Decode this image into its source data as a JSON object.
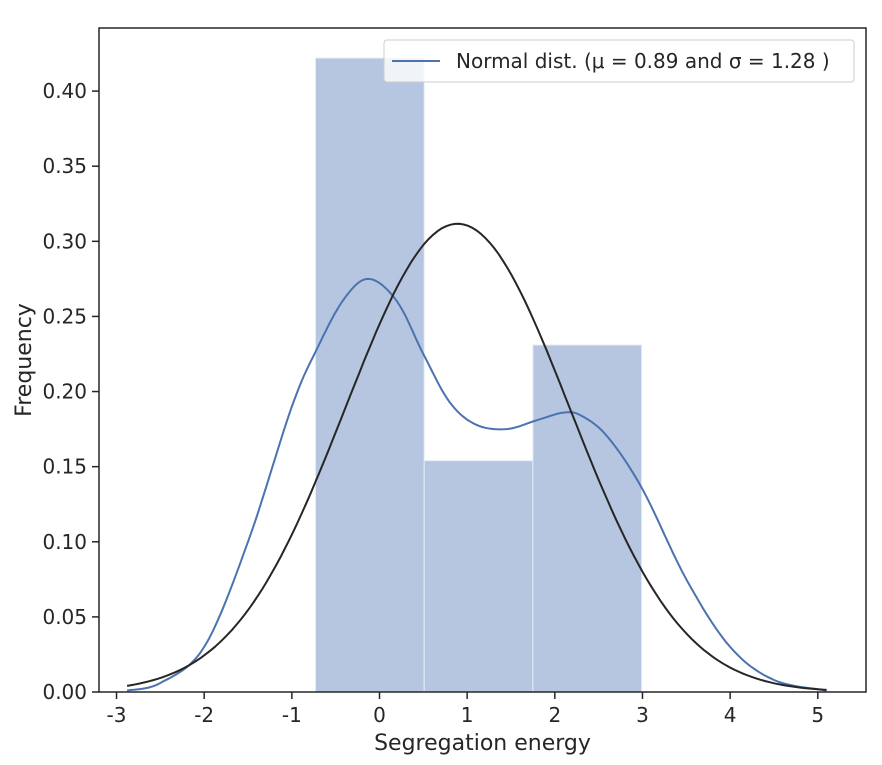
{
  "chart_data": {
    "type": "bar",
    "xlabel": "Segregation energy",
    "ylabel": "Frequency",
    "xlim": [
      -3.2,
      5.55
    ],
    "ylim": [
      0,
      0.442
    ],
    "xticks": [
      -3,
      -2,
      -1,
      0,
      1,
      2,
      3,
      4,
      5
    ],
    "yticks": [
      0.0,
      0.05,
      0.1,
      0.15,
      0.2,
      0.25,
      0.3,
      0.35,
      0.4
    ],
    "ytick_labels": [
      "0.00",
      "0.05",
      "0.10",
      "0.15",
      "0.20",
      "0.25",
      "0.30",
      "0.35",
      "0.40"
    ],
    "grid": false,
    "legend_position": "top-right",
    "legend": [
      "Normal dist. (μ = 0.89 and σ = 1.28 )"
    ],
    "histogram": {
      "bin_edges": [
        -0.73,
        0.51,
        1.75,
        2.99
      ],
      "values": [
        0.422,
        0.154,
        0.231
      ],
      "color": "#b6c6e0"
    },
    "series": [
      {
        "name": "Normal dist. (μ = 0.89 and σ = 1.28 )",
        "kind": "line",
        "color": "#4c72b0",
        "x": [
          -2.88,
          -2.5,
          -2.0,
          -1.5,
          -1.0,
          -0.7,
          -0.4,
          -0.12,
          0.2,
          0.5,
          0.8,
          1.1,
          1.45,
          1.8,
          2.1,
          2.3,
          2.6,
          3.0,
          3.5,
          4.0,
          4.5,
          5.1
        ],
        "y": [
          0.001,
          0.006,
          0.03,
          0.1,
          0.19,
          0.23,
          0.262,
          0.275,
          0.26,
          0.225,
          0.193,
          0.178,
          0.175,
          0.181,
          0.186,
          0.184,
          0.17,
          0.135,
          0.075,
          0.03,
          0.008,
          0.001
        ]
      },
      {
        "name": "",
        "kind": "line",
        "color": "#262626",
        "normal": {
          "mu": 0.89,
          "sigma": 1.28,
          "x_start": -2.88,
          "x_end": 5.1
        }
      }
    ]
  }
}
